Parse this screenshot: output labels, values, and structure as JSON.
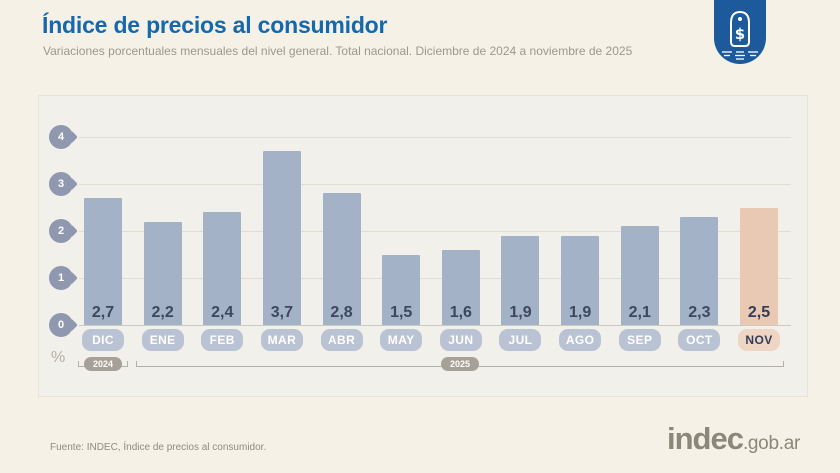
{
  "header": {
    "title": "Índice de precios al consumidor",
    "subtitle": "Variaciones porcentuales mensuales del nivel general. Total nacional. Diciembre de 2024 a noviembre de 2025"
  },
  "icon": {
    "name": "price-tag-badge",
    "symbol": "$"
  },
  "chart_data": {
    "type": "bar",
    "title": "Índice de precios al consumidor",
    "categories": [
      "DIC",
      "ENE",
      "FEB",
      "MAR",
      "ABR",
      "MAY",
      "JUN",
      "JUL",
      "AGO",
      "SEP",
      "OCT",
      "NOV"
    ],
    "values": [
      2.7,
      2.2,
      2.4,
      3.7,
      2.8,
      1.5,
      1.6,
      1.9,
      1.9,
      2.1,
      2.3,
      2.5
    ],
    "value_labels": [
      "2,7",
      "2,2",
      "2,4",
      "3,7",
      "2,8",
      "1,5",
      "1,6",
      "1,9",
      "1,9",
      "2,1",
      "2,3",
      "2,5"
    ],
    "ylabel": "%",
    "xlabel": "",
    "ylim": [
      0,
      4
    ],
    "yticks": [
      0,
      1,
      2,
      3,
      4
    ],
    "grid": true,
    "legend": false,
    "highlight_index": 11,
    "year_groups": [
      {
        "label": "2024",
        "months": [
          "DIC"
        ]
      },
      {
        "label": "2025",
        "months": [
          "ENE",
          "FEB",
          "MAR",
          "ABR",
          "MAY",
          "JUN",
          "JUL",
          "AGO",
          "SEP",
          "OCT",
          "NOV"
        ]
      }
    ],
    "colors": {
      "bar": "#a4b2c7",
      "bar_highlight": "#e9c8b4",
      "month_pill": "#b9c3d3",
      "month_pill_highlight": "#eed5c4",
      "value_text": "#3d4760",
      "highlight_text": "#323d58",
      "tick_badge": "#8f98ae",
      "title_blue": "#1568ac",
      "icon_blue": "#1d5a9c"
    }
  },
  "footer": {
    "source": "Fuente: INDEC, Índice de precios al consumidor.",
    "logo_main": "indec",
    "logo_suffix": ".gob.ar"
  }
}
